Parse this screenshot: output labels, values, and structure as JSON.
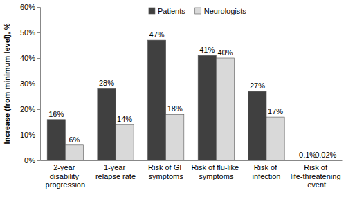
{
  "chart_data": {
    "type": "bar",
    "y_label": "Increase (from minimum level), %",
    "categories": [
      "2-year disability progression",
      "1-year relapse rate",
      "Risk of GI symptoms",
      "Risk of flu-like symptoms",
      "Risk of infection",
      "Risk of life-threatening event"
    ],
    "series": [
      {
        "name": "Patients",
        "color": "#404040",
        "values": [
          16,
          28,
          47,
          41,
          27,
          0.1
        ],
        "value_labels": [
          "16%",
          "28%",
          "47%",
          "41%",
          "27%",
          "0.1%"
        ]
      },
      {
        "name": "Neurologists",
        "color": "#d9d9d9",
        "values": [
          6,
          14,
          18,
          40,
          17,
          0.02
        ],
        "value_labels": [
          "6%",
          "14%",
          "18%",
          "40%",
          "17%",
          "0.02%"
        ]
      }
    ],
    "ylim": [
      0,
      60
    ],
    "yticks": [
      {
        "value": 0,
        "label": "0%"
      },
      {
        "value": 10,
        "label": "10%"
      },
      {
        "value": 20,
        "label": "20%"
      },
      {
        "value": 30,
        "label": "30%"
      },
      {
        "value": 40,
        "label": "40%"
      },
      {
        "value": 50,
        "label": "50%"
      },
      {
        "value": 60,
        "label": "60%"
      }
    ],
    "grid": false,
    "legend": "top",
    "data_labels": true
  }
}
